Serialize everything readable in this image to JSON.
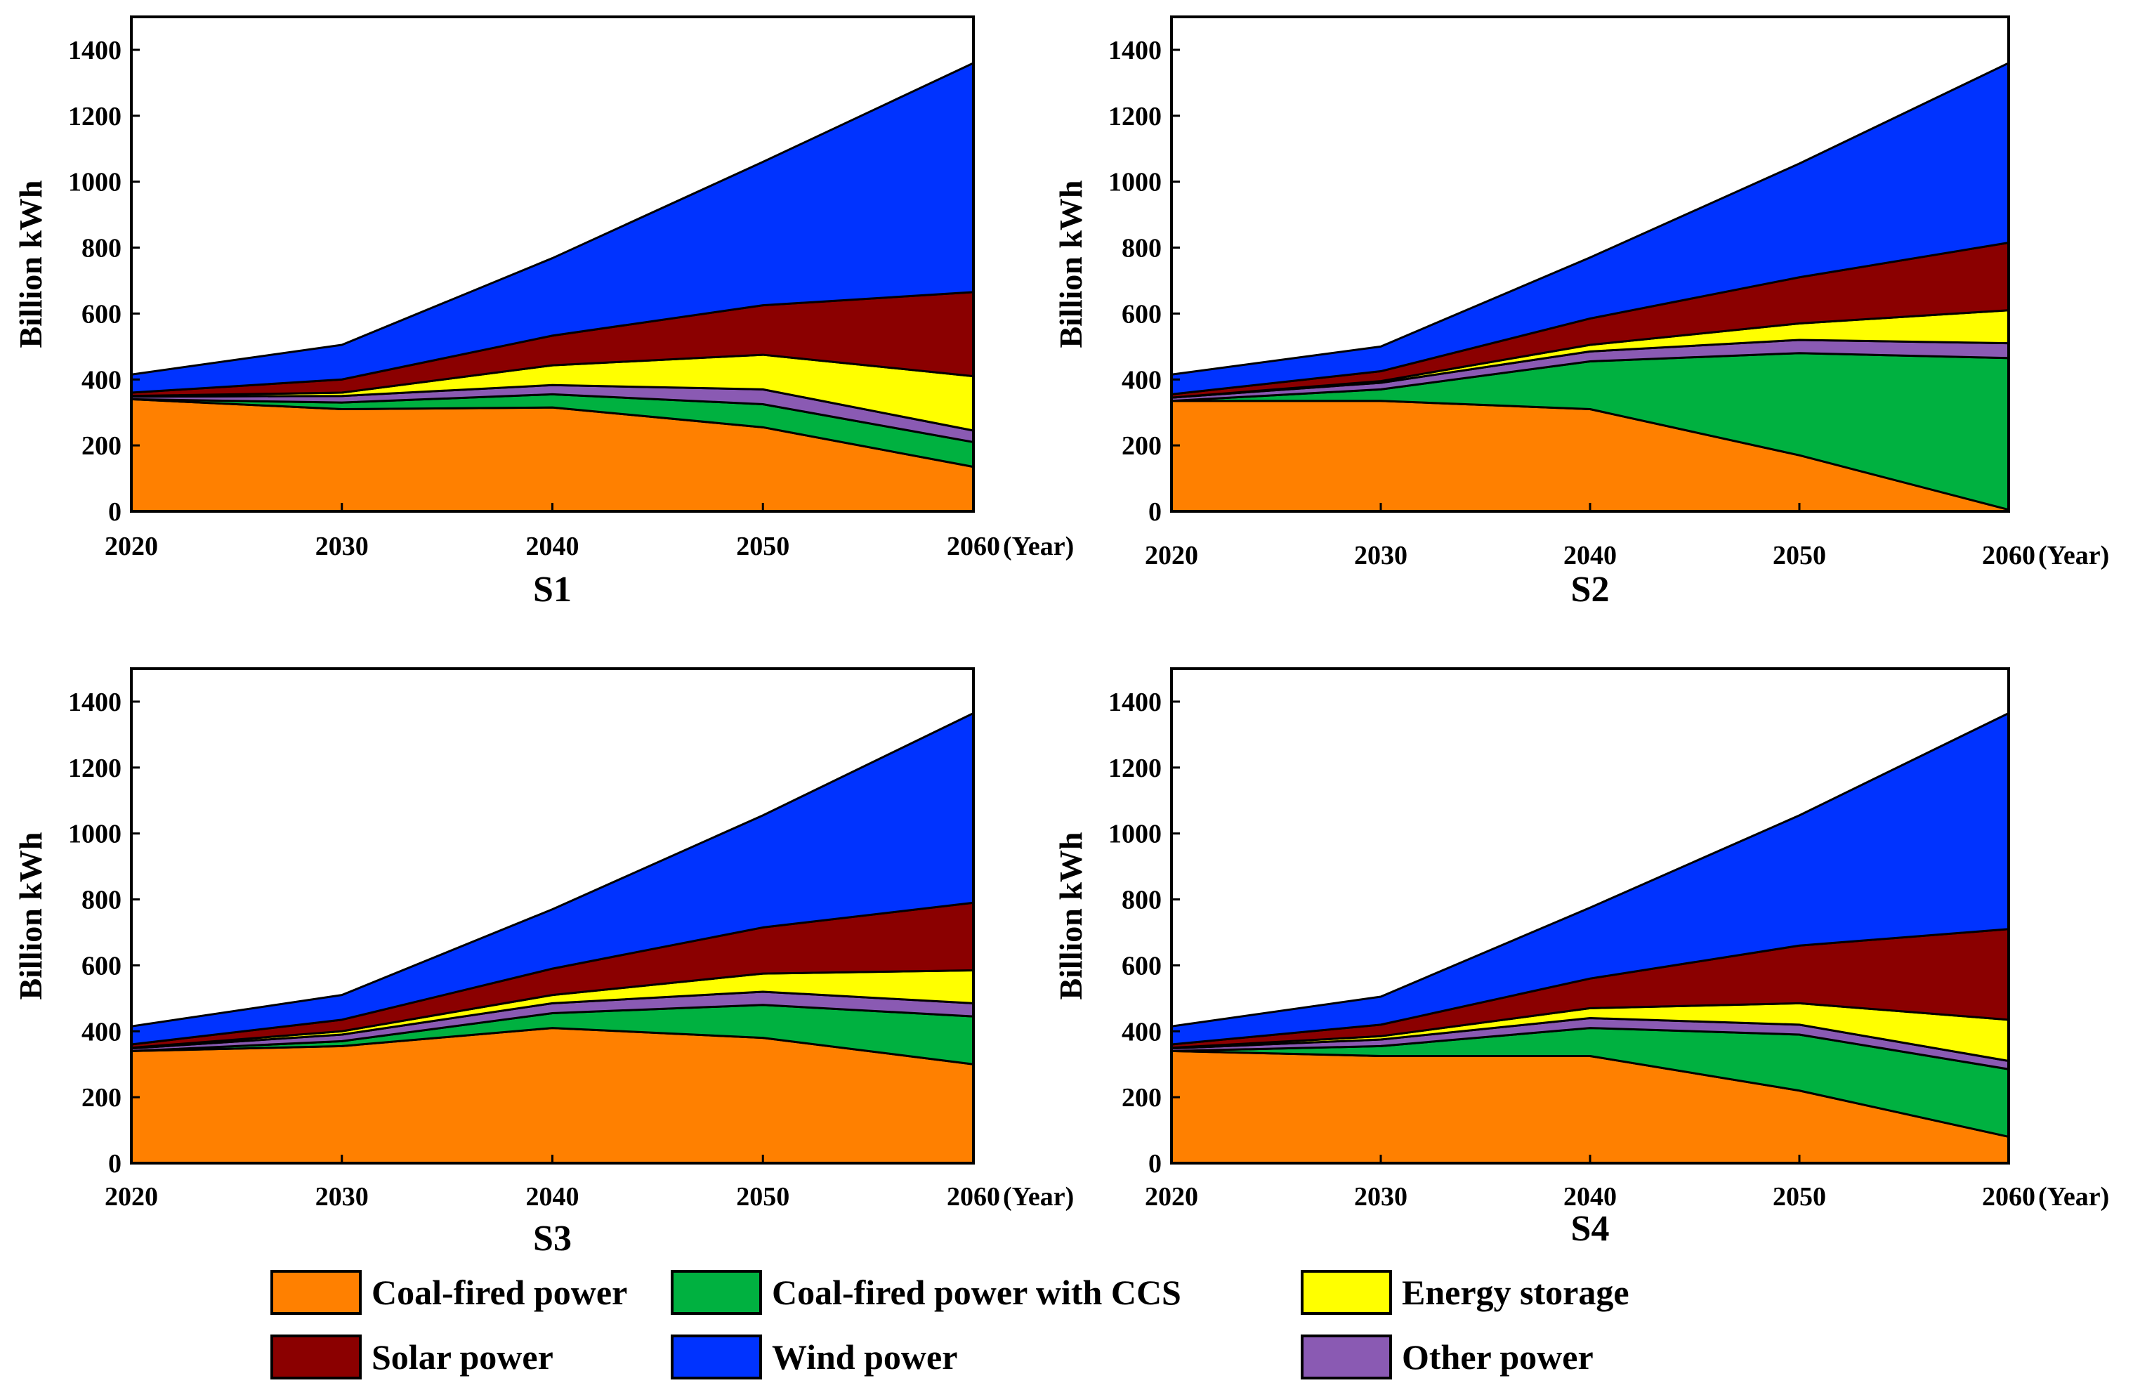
{
  "legend": [
    {
      "key": "coal",
      "label": "Coal-fired power",
      "color": "#ff8000"
    },
    {
      "key": "ccs",
      "label": "Coal-fired power with CCS",
      "color": "#00b140"
    },
    {
      "key": "storage",
      "label": "Energy storage",
      "color": "#ffff00"
    },
    {
      "key": "solar",
      "label": "Solar power",
      "color": "#8b0000"
    },
    {
      "key": "wind",
      "label": "Wind power",
      "color": "#0033ff"
    },
    {
      "key": "other",
      "label": "Other power",
      "color": "#8a5ab3"
    }
  ],
  "chart_data": [
    {
      "type": "area",
      "title": "S1",
      "xlabel": "",
      "x_unit_label": "(Year)",
      "ylabel": "Billion kWh",
      "x": [
        2020,
        2030,
        2040,
        2050,
        2060
      ],
      "xlim": [
        2020,
        2060
      ],
      "ylim": [
        0,
        1500
      ],
      "yticks": [
        0,
        200,
        400,
        600,
        800,
        1000,
        1200,
        1400
      ],
      "stack_order": [
        "coal",
        "ccs",
        "other",
        "storage",
        "solar",
        "wind"
      ],
      "series": [
        {
          "key": "coal",
          "name": "Coal-fired power",
          "values": [
            340,
            310,
            315,
            255,
            135
          ]
        },
        {
          "key": "ccs",
          "name": "Coal-fired power with CCS",
          "values": [
            0,
            20,
            40,
            70,
            75
          ]
        },
        {
          "key": "other",
          "name": "Other power",
          "values": [
            8,
            20,
            28,
            45,
            35
          ]
        },
        {
          "key": "storage",
          "name": "Energy storage",
          "values": [
            2,
            10,
            60,
            105,
            165
          ]
        },
        {
          "key": "solar",
          "name": "Solar power",
          "values": [
            10,
            40,
            90,
            150,
            255
          ]
        },
        {
          "key": "wind",
          "name": "Wind power",
          "values": [
            55,
            105,
            235,
            435,
            695
          ]
        }
      ]
    },
    {
      "type": "area",
      "title": "S2",
      "xlabel": "",
      "x_unit_label": "(Year)",
      "ylabel": "Billion kWh",
      "x": [
        2020,
        2030,
        2040,
        2050,
        2060
      ],
      "xlim": [
        2020,
        2060
      ],
      "ylim": [
        0,
        1500
      ],
      "yticks": [
        0,
        200,
        400,
        600,
        800,
        1000,
        1200,
        1400
      ],
      "stack_order": [
        "coal",
        "ccs",
        "other",
        "storage",
        "solar",
        "wind"
      ],
      "series": [
        {
          "key": "coal",
          "name": "Coal-fired power",
          "values": [
            335,
            335,
            310,
            170,
            5
          ]
        },
        {
          "key": "ccs",
          "name": "Coal-fired power with CCS",
          "values": [
            0,
            35,
            145,
            310,
            460
          ]
        },
        {
          "key": "other",
          "name": "Other power",
          "values": [
            10,
            20,
            30,
            40,
            45
          ]
        },
        {
          "key": "storage",
          "name": "Energy storage",
          "values": [
            0,
            5,
            20,
            50,
            100
          ]
        },
        {
          "key": "solar",
          "name": "Solar power",
          "values": [
            10,
            30,
            80,
            140,
            205
          ]
        },
        {
          "key": "wind",
          "name": "Wind power",
          "values": [
            60,
            75,
            185,
            345,
            545
          ]
        }
      ]
    },
    {
      "type": "area",
      "title": "S3",
      "xlabel": "",
      "x_unit_label": "(Year)",
      "ylabel": "Billion kWh",
      "x": [
        2020,
        2030,
        2040,
        2050,
        2060
      ],
      "xlim": [
        2020,
        2060
      ],
      "ylim": [
        0,
        1500
      ],
      "yticks": [
        0,
        200,
        400,
        600,
        800,
        1000,
        1200,
        1400
      ],
      "stack_order": [
        "coal",
        "ccs",
        "other",
        "storage",
        "solar",
        "wind"
      ],
      "series": [
        {
          "key": "coal",
          "name": "Coal-fired power",
          "values": [
            340,
            355,
            410,
            380,
            300
          ]
        },
        {
          "key": "ccs",
          "name": "Coal-fired power with CCS",
          "values": [
            0,
            15,
            45,
            100,
            145
          ]
        },
        {
          "key": "other",
          "name": "Other power",
          "values": [
            8,
            20,
            30,
            40,
            40
          ]
        },
        {
          "key": "storage",
          "name": "Energy storage",
          "values": [
            2,
            10,
            25,
            55,
            100
          ]
        },
        {
          "key": "solar",
          "name": "Solar power",
          "values": [
            10,
            35,
            80,
            140,
            205
          ]
        },
        {
          "key": "wind",
          "name": "Wind power",
          "values": [
            55,
            75,
            180,
            340,
            575
          ]
        }
      ]
    },
    {
      "type": "area",
      "title": "S4",
      "xlabel": "",
      "x_unit_label": "(Year)",
      "ylabel": "Billion kWh",
      "x": [
        2020,
        2030,
        2040,
        2050,
        2060
      ],
      "xlim": [
        2020,
        2060
      ],
      "ylim": [
        0,
        1500
      ],
      "yticks": [
        0,
        200,
        400,
        600,
        800,
        1000,
        1200,
        1400
      ],
      "stack_order": [
        "coal",
        "ccs",
        "other",
        "storage",
        "solar",
        "wind"
      ],
      "series": [
        {
          "key": "coal",
          "name": "Coal-fired power",
          "values": [
            340,
            325,
            325,
            220,
            80
          ]
        },
        {
          "key": "ccs",
          "name": "Coal-fired power with CCS",
          "values": [
            0,
            30,
            85,
            170,
            205
          ]
        },
        {
          "key": "other",
          "name": "Other power",
          "values": [
            8,
            20,
            30,
            30,
            25
          ]
        },
        {
          "key": "storage",
          "name": "Energy storage",
          "values": [
            2,
            10,
            30,
            65,
            125
          ]
        },
        {
          "key": "solar",
          "name": "Solar power",
          "values": [
            10,
            35,
            90,
            175,
            275
          ]
        },
        {
          "key": "wind",
          "name": "Wind power",
          "values": [
            55,
            85,
            215,
            395,
            655
          ]
        }
      ]
    }
  ]
}
